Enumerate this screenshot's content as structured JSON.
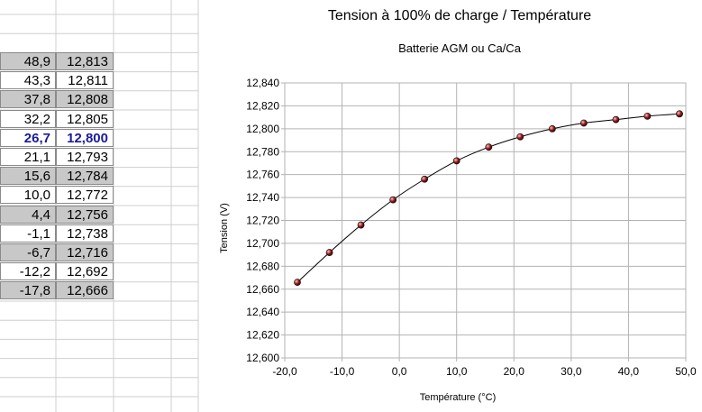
{
  "table": {
    "rows": [
      {
        "temp": "48,9",
        "volt": "12,813",
        "shaded": true,
        "bold": false
      },
      {
        "temp": "43,3",
        "volt": "12,811",
        "shaded": false,
        "bold": false
      },
      {
        "temp": "37,8",
        "volt": "12,808",
        "shaded": true,
        "bold": false
      },
      {
        "temp": "32,2",
        "volt": "12,805",
        "shaded": false,
        "bold": false
      },
      {
        "temp": "26,7",
        "volt": "12,800",
        "shaded": false,
        "bold": true
      },
      {
        "temp": "21,1",
        "volt": "12,793",
        "shaded": false,
        "bold": false
      },
      {
        "temp": "15,6",
        "volt": "12,784",
        "shaded": true,
        "bold": false
      },
      {
        "temp": "10,0",
        "volt": "12,772",
        "shaded": false,
        "bold": false
      },
      {
        "temp": "4,4",
        "volt": "12,756",
        "shaded": true,
        "bold": false
      },
      {
        "temp": "-1,1",
        "volt": "12,738",
        "shaded": false,
        "bold": false
      },
      {
        "temp": "-6,7",
        "volt": "12,716",
        "shaded": true,
        "bold": false
      },
      {
        "temp": "-12,2",
        "volt": "12,692",
        "shaded": false,
        "bold": false
      },
      {
        "temp": "-17,8",
        "volt": "12,666",
        "shaded": true,
        "bold": false
      }
    ],
    "highlight_color": "#1b1b9a",
    "shade_color": "#c8c8c8"
  },
  "chart_data": {
    "type": "scatter",
    "title": "Tension à 100% de charge / Température",
    "subtitle": "Batterie AGM ou Ca/Ca",
    "xlabel": "Température (°C)",
    "ylabel": "Tension (V)",
    "xlim": [
      -20,
      50
    ],
    "ylim": [
      12.6,
      12.84
    ],
    "xticks": [
      "-20,0",
      "-10,0",
      "0,0",
      "10,0",
      "20,0",
      "30,0",
      "40,0",
      "50,0"
    ],
    "yticks": [
      "12,600",
      "12,620",
      "12,640",
      "12,660",
      "12,680",
      "12,700",
      "12,720",
      "12,740",
      "12,760",
      "12,780",
      "12,800",
      "12,820",
      "12,840"
    ],
    "grid": true,
    "trendline": "smooth curve",
    "marker_color": "#8b1a1a",
    "points": [
      {
        "x": -17.8,
        "y": 12.666
      },
      {
        "x": -12.2,
        "y": 12.692
      },
      {
        "x": -6.7,
        "y": 12.716
      },
      {
        "x": -1.1,
        "y": 12.738
      },
      {
        "x": 4.4,
        "y": 12.756
      },
      {
        "x": 10.0,
        "y": 12.772
      },
      {
        "x": 15.6,
        "y": 12.784
      },
      {
        "x": 21.1,
        "y": 12.793
      },
      {
        "x": 26.7,
        "y": 12.8
      },
      {
        "x": 32.2,
        "y": 12.805
      },
      {
        "x": 37.8,
        "y": 12.808
      },
      {
        "x": 43.3,
        "y": 12.811
      },
      {
        "x": 48.9,
        "y": 12.813
      }
    ]
  }
}
